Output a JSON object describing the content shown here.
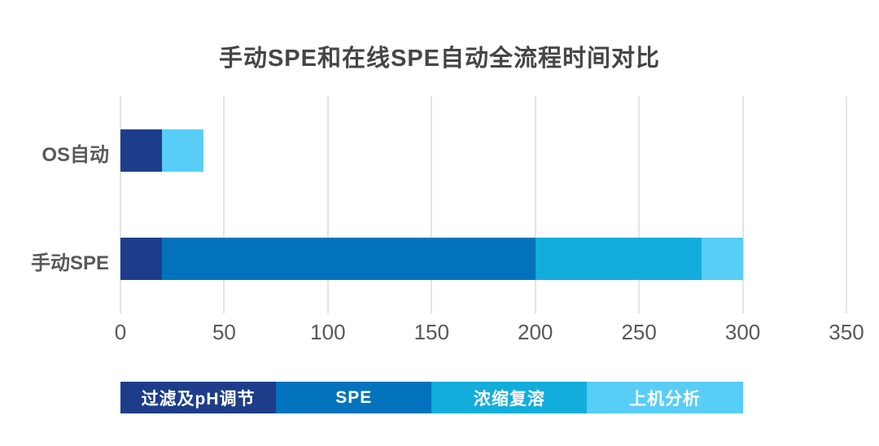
{
  "title": "手动SPE和在线SPE自动全流程时间对比",
  "chart_data": {
    "type": "bar",
    "orientation": "horizontal",
    "stacked": true,
    "title": "手动SPE和在线SPE自动全流程时间对比",
    "categories": [
      "OS自动",
      "手动SPE"
    ],
    "series": [
      {
        "name": "过滤及pH调节",
        "color": "#1d3d8a",
        "values": [
          20,
          20
        ]
      },
      {
        "name": "SPE",
        "color": "#0473bd",
        "values": [
          0,
          180
        ]
      },
      {
        "name": "浓缩复溶",
        "color": "#13addc",
        "values": [
          0,
          80
        ]
      },
      {
        "name": "上机分析",
        "color": "#58cdf6",
        "values": [
          20,
          20
        ]
      }
    ],
    "totals": [
      40,
      300
    ],
    "xlabel": "",
    "ylabel": "",
    "xlim": [
      0,
      350
    ],
    "xticks": [
      0,
      50,
      100,
      150,
      200,
      250,
      300,
      350
    ],
    "grid": "vertical",
    "gridline_color": "#e4e4e4",
    "legend_position": "bottom",
    "text_color": "#595959",
    "title_color": "#454545"
  }
}
